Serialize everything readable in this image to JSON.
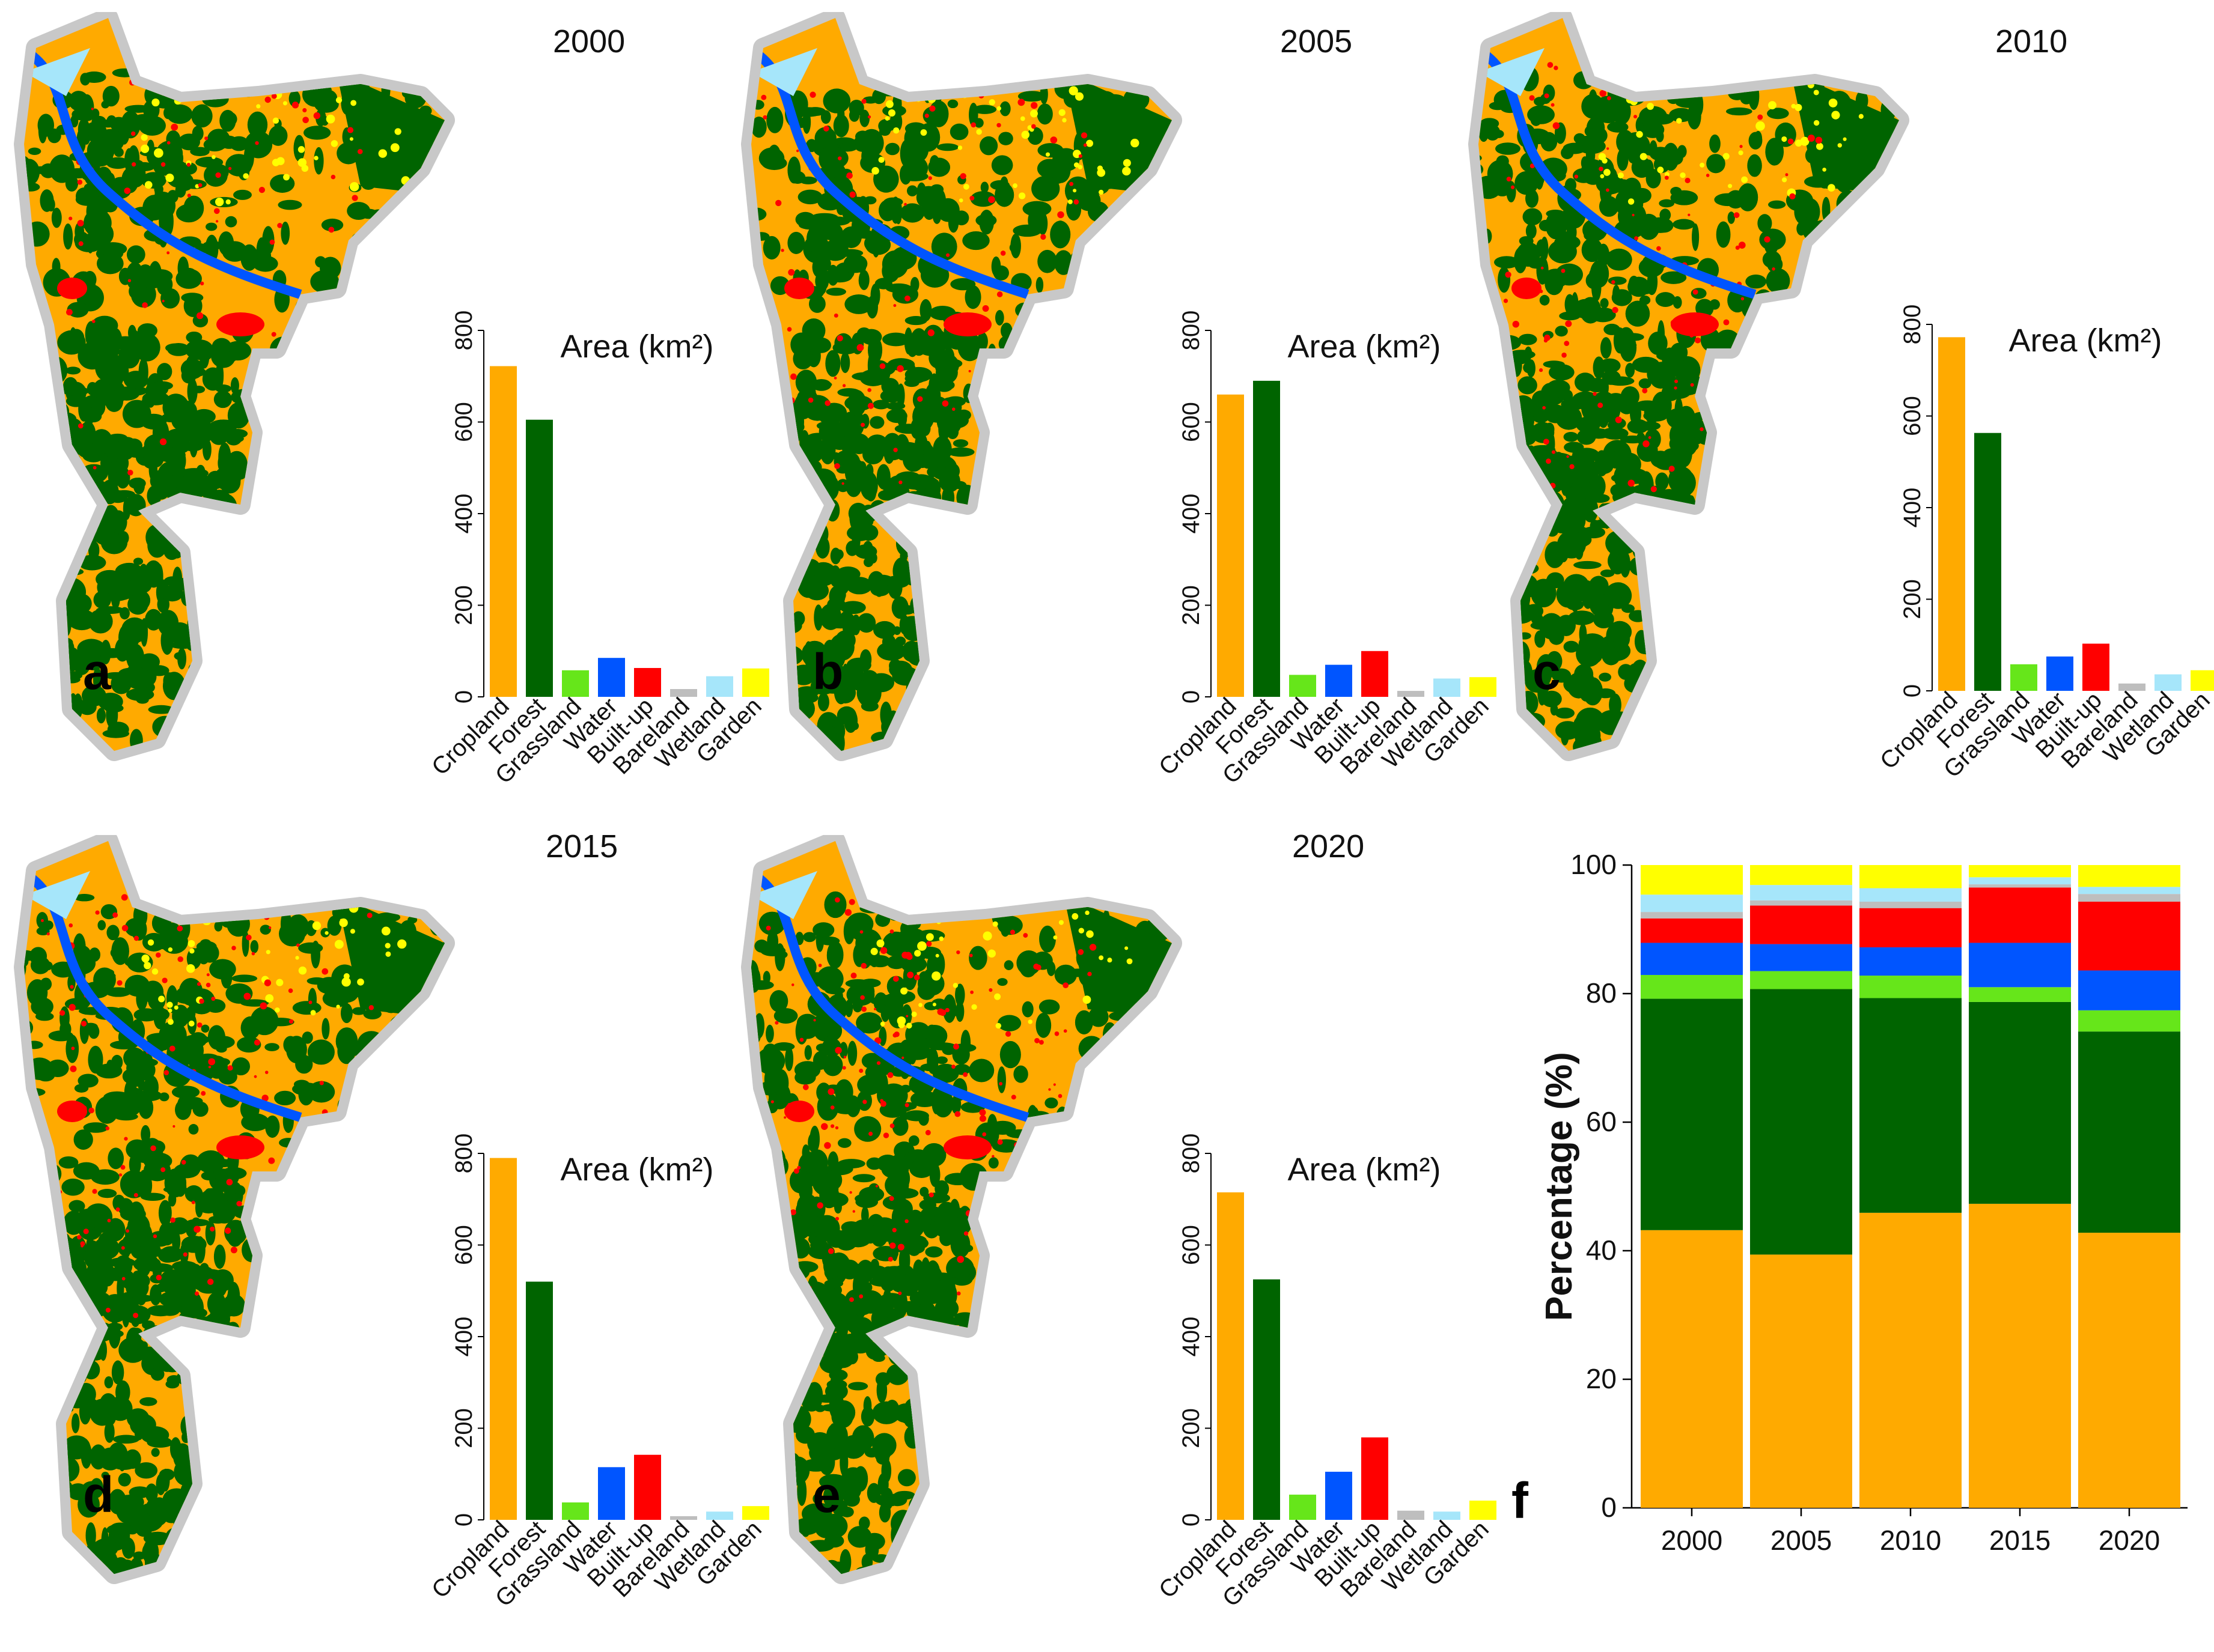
{
  "colors": {
    "Cropland": "#FFAA00",
    "Forest": "#006400",
    "Grassland": "#66E61A",
    "Water": "#0055FF",
    "Built-up": "#FF0000",
    "Bareland": "#BEBEBE",
    "Wetland": "#A6E6FA",
    "Garden": "#FFFF00"
  },
  "panels": [
    {
      "letter": "a",
      "year": "2000"
    },
    {
      "letter": "b",
      "year": "2005"
    },
    {
      "letter": "c",
      "year": "2010"
    },
    {
      "letter": "d",
      "year": "2015"
    },
    {
      "letter": "e",
      "year": "2020"
    }
  ],
  "panel_f_letter": "f",
  "chart_data": [
    {
      "type": "bar",
      "panel": "a",
      "title": "Area (km²)",
      "categories": [
        "Cropland",
        "Forest",
        "Grassland",
        "Water",
        "Built-up",
        "Bareland",
        "Wetland",
        "Garden"
      ],
      "values": [
        722,
        605,
        58,
        85,
        63,
        17,
        45,
        62
      ],
      "ylim": [
        0,
        800
      ],
      "yticks": [
        "0",
        "200",
        "400",
        "600",
        "800"
      ]
    },
    {
      "type": "bar",
      "panel": "b",
      "title": "Area (km²)",
      "categories": [
        "Cropland",
        "Forest",
        "Grassland",
        "Water",
        "Built-up",
        "Bareland",
        "Wetland",
        "Garden"
      ],
      "values": [
        660,
        690,
        48,
        70,
        100,
        13,
        40,
        43
      ],
      "ylim": [
        0,
        800
      ],
      "yticks": [
        "0",
        "200",
        "400",
        "600",
        "800"
      ]
    },
    {
      "type": "bar",
      "panel": "c",
      "title": "Area (km²)",
      "categories": [
        "Cropland",
        "Forest",
        "Grassland",
        "Water",
        "Built-up",
        "Bareland",
        "Wetland",
        "Garden"
      ],
      "values": [
        772,
        563,
        58,
        75,
        103,
        16,
        36,
        45
      ],
      "ylim": [
        0,
        800
      ],
      "yticks": [
        "0",
        "200",
        "400",
        "600",
        "800"
      ]
    },
    {
      "type": "bar",
      "panel": "d",
      "title": "Area (km²)",
      "categories": [
        "Cropland",
        "Forest",
        "Grassland",
        "Water",
        "Built-up",
        "Bareland",
        "Wetland",
        "Garden"
      ],
      "values": [
        790,
        520,
        38,
        115,
        142,
        8,
        18,
        30
      ],
      "ylim": [
        0,
        800
      ],
      "yticks": [
        "0",
        "200",
        "400",
        "600",
        "800"
      ]
    },
    {
      "type": "bar",
      "panel": "e",
      "title": "Area (km²)",
      "categories": [
        "Cropland",
        "Forest",
        "Grassland",
        "Water",
        "Built-up",
        "Bareland",
        "Wetland",
        "Garden"
      ],
      "values": [
        715,
        525,
        55,
        105,
        180,
        20,
        18,
        42
      ],
      "ylim": [
        0,
        800
      ],
      "yticks": [
        "0",
        "200",
        "400",
        "600",
        "800"
      ]
    },
    {
      "type": "bar",
      "panel": "f",
      "stacked": true,
      "ylabel": "Percentage (%)",
      "categories": [
        "2000",
        "2005",
        "2010",
        "2015",
        "2020"
      ],
      "ylim": [
        0,
        100
      ],
      "yticks": [
        "0",
        "20",
        "40",
        "60",
        "80",
        "100"
      ],
      "series": [
        {
          "name": "Cropland",
          "values": [
            43.2,
            39.4,
            45.9,
            47.3,
            42.8
          ]
        },
        {
          "name": "Forest",
          "values": [
            36.0,
            41.3,
            33.4,
            31.4,
            31.3
          ]
        },
        {
          "name": "Grassland",
          "values": [
            3.7,
            2.8,
            3.5,
            2.3,
            3.3
          ]
        },
        {
          "name": "Water",
          "values": [
            5.0,
            4.2,
            4.4,
            6.9,
            6.2
          ]
        },
        {
          "name": "Built-up",
          "values": [
            3.8,
            6.0,
            6.1,
            8.6,
            10.7
          ]
        },
        {
          "name": "Bareland",
          "values": [
            1.0,
            0.8,
            1.0,
            0.5,
            1.2
          ]
        },
        {
          "name": "Wetland",
          "values": [
            2.7,
            2.4,
            2.1,
            1.1,
            1.1
          ]
        },
        {
          "name": "Garden",
          "values": [
            4.6,
            3.1,
            3.6,
            1.9,
            3.4
          ]
        }
      ]
    }
  ]
}
